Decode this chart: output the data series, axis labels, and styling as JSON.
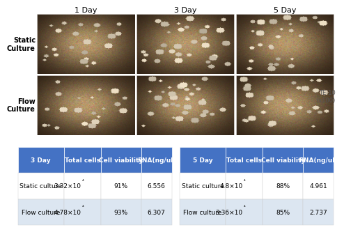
{
  "col_labels": [
    "1 Day",
    "3 Day",
    "5 Day"
  ],
  "row_labels": [
    "Static\nCulture",
    "Flow\nCulture"
  ],
  "te_label": "TE-10\n(x100)",
  "table1_header": [
    "3 Day",
    "Total cells",
    "Cell viability",
    "RNA(ng/ul)"
  ],
  "table1_rows": [
    [
      "Static culture",
      "3.32×10⁴",
      "91%",
      "6.556"
    ],
    [
      "Flow culture",
      "4.78×10⁴",
      "93%",
      "6.307"
    ]
  ],
  "table2_header": [
    "5 Day",
    "Total cells",
    "Cell viability",
    "RNA(ng/ul)"
  ],
  "table2_rows": [
    [
      "Static culture",
      "4.8×10⁴",
      "88%",
      "4.961"
    ],
    [
      "Flow culture",
      "3.36×10⁴",
      "85%",
      "2.737"
    ]
  ],
  "header_color": "#4472C4",
  "header_text_color": "#FFFFFF",
  "row_alt_color": "#DCE6F1",
  "row_bg_color": "#FFFFFF",
  "table_text_color": "#000000",
  "bg_color": "#FFFFFF",
  "row_label_fontsize": 7,
  "col_label_fontsize": 8,
  "table_fontsize": 6.5,
  "te_fontsize": 6
}
